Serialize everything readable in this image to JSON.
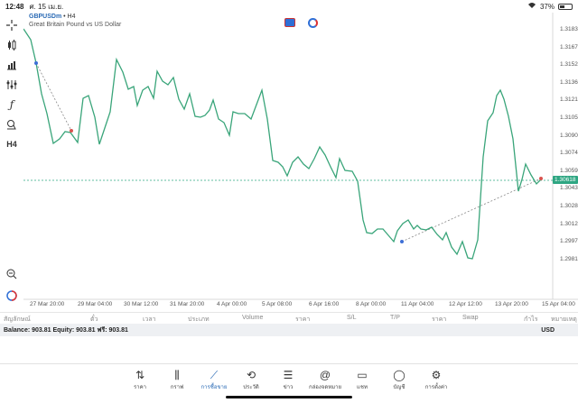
{
  "status": {
    "time": "12:48",
    "date": "ศ. 15 เม.ย.",
    "battery": "37%"
  },
  "chart": {
    "symbol": "GBPUSDm",
    "timeframe": "• H4",
    "description": "Great Britain Pound vs US Dollar",
    "current_price": "1.30618",
    "price_axis": [
      "1.31830",
      "1.31675",
      "1.31520",
      "1.31365",
      "1.31210",
      "1.31055",
      "1.30900",
      "1.30745",
      "1.30590",
      "1.30435",
      "1.30280",
      "1.30125",
      "1.29970",
      "1.29815"
    ],
    "time_axis": [
      "27 Mar 20:00",
      "29 Mar 04:00",
      "30 Mar 12:00",
      "31 Mar 20:00",
      "4 Apr 00:00",
      "5 Apr 08:00",
      "6 Apr 16:00",
      "8 Apr 00:00",
      "11 Apr 04:00",
      "12 Apr 12:00",
      "13 Apr 20:00",
      "15 Apr 04:00"
    ],
    "colors": {
      "line": "#3aa57a",
      "trend": "#3e6fd6",
      "current": "#2ea682"
    }
  },
  "columns": [
    "สัญลักษณ์",
    "ตั๋ว",
    "เวลา",
    "ประเภท",
    "Volume",
    "ราคา",
    "S/L",
    "T/P",
    "ราคา",
    "Swap",
    "กำไร",
    "หมายเหตุ"
  ],
  "balance": {
    "text": "Balance: 903.81  Equity: 903.81  ฟรี: 903.81",
    "currency": "USD"
  },
  "nav": [
    {
      "label": "ราคา",
      "icon": "arrows-updown-icon"
    },
    {
      "label": "กราฟ",
      "icon": "candles-icon"
    },
    {
      "label": "การซื้อขาย",
      "icon": "trend-icon"
    },
    {
      "label": "ประวัติ",
      "icon": "history-icon"
    },
    {
      "label": "ข่าว",
      "icon": "news-icon"
    },
    {
      "label": "กล่องจดหมาย",
      "icon": "at-icon"
    },
    {
      "label": "แชท",
      "icon": "chat-icon"
    },
    {
      "label": "บัญชี",
      "icon": "account-icon"
    },
    {
      "label": "การตั้งค่า",
      "icon": "settings-icon"
    }
  ]
}
